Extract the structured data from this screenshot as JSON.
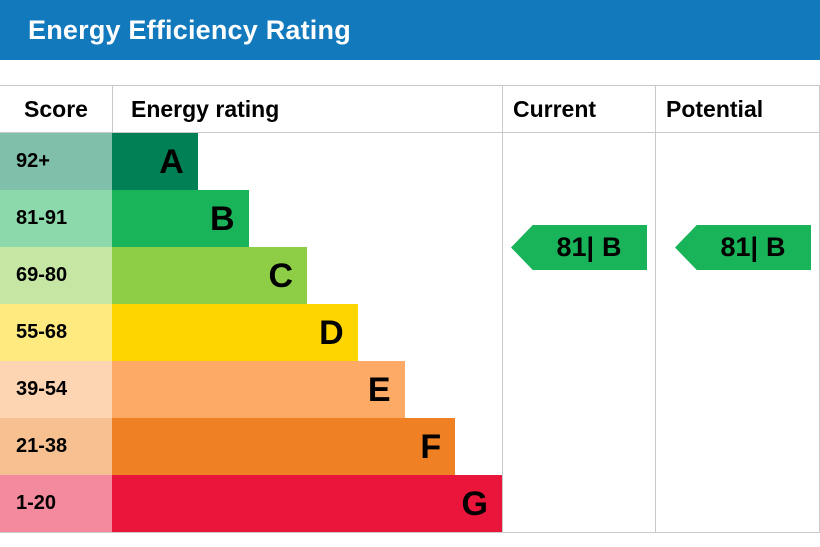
{
  "title_bar": {
    "title": "Energy Efficiency Rating",
    "bg_color": "#1279bd",
    "text_color": "#ffffff"
  },
  "table": {
    "headers": {
      "score": "Score",
      "rating": "Energy rating",
      "current": "Current",
      "potential": "Potential"
    },
    "border_color": "#c9c9c9"
  },
  "chart_data": {
    "type": "bar",
    "title": "Energy Efficiency Rating",
    "categories": [
      "A",
      "B",
      "C",
      "D",
      "E",
      "F",
      "G"
    ],
    "score_ranges": [
      "92+",
      "81-91",
      "69-80",
      "55-68",
      "39-54",
      "21-38",
      "1-20"
    ],
    "bands": [
      {
        "score_range": "92+",
        "letter": "A",
        "bar_color": "#008054",
        "score_bg_color": "#80c0aa",
        "bar_width": "22%"
      },
      {
        "score_range": "81-91",
        "letter": "B",
        "bar_color": "#19b459",
        "score_bg_color": "#8cdaac",
        "bar_width": "35%"
      },
      {
        "score_range": "69-80",
        "letter": "C",
        "bar_color": "#8dce46",
        "score_bg_color": "#c6e7a3",
        "bar_width": "50%"
      },
      {
        "score_range": "55-68",
        "letter": "D",
        "bar_color": "#ffd500",
        "score_bg_color": "#ffea80",
        "bar_width": "63%"
      },
      {
        "score_range": "39-54",
        "letter": "E",
        "bar_color": "#fcaa65",
        "score_bg_color": "#fed5b2",
        "bar_width": "75%"
      },
      {
        "score_range": "21-38",
        "letter": "F",
        "bar_color": "#ef8023",
        "score_bg_color": "#f7c091",
        "bar_width": "88%"
      },
      {
        "score_range": "1-20",
        "letter": "G",
        "bar_color": "#e9153b",
        "score_bg_color": "#f48a9d",
        "bar_width": "100%"
      }
    ],
    "current": {
      "value": "81",
      "divider": "|",
      "band": "B",
      "arrow_color": "#19b459"
    },
    "potential": {
      "value": "81",
      "divider": "|",
      "band": "B",
      "arrow_color": "#19b459"
    }
  }
}
